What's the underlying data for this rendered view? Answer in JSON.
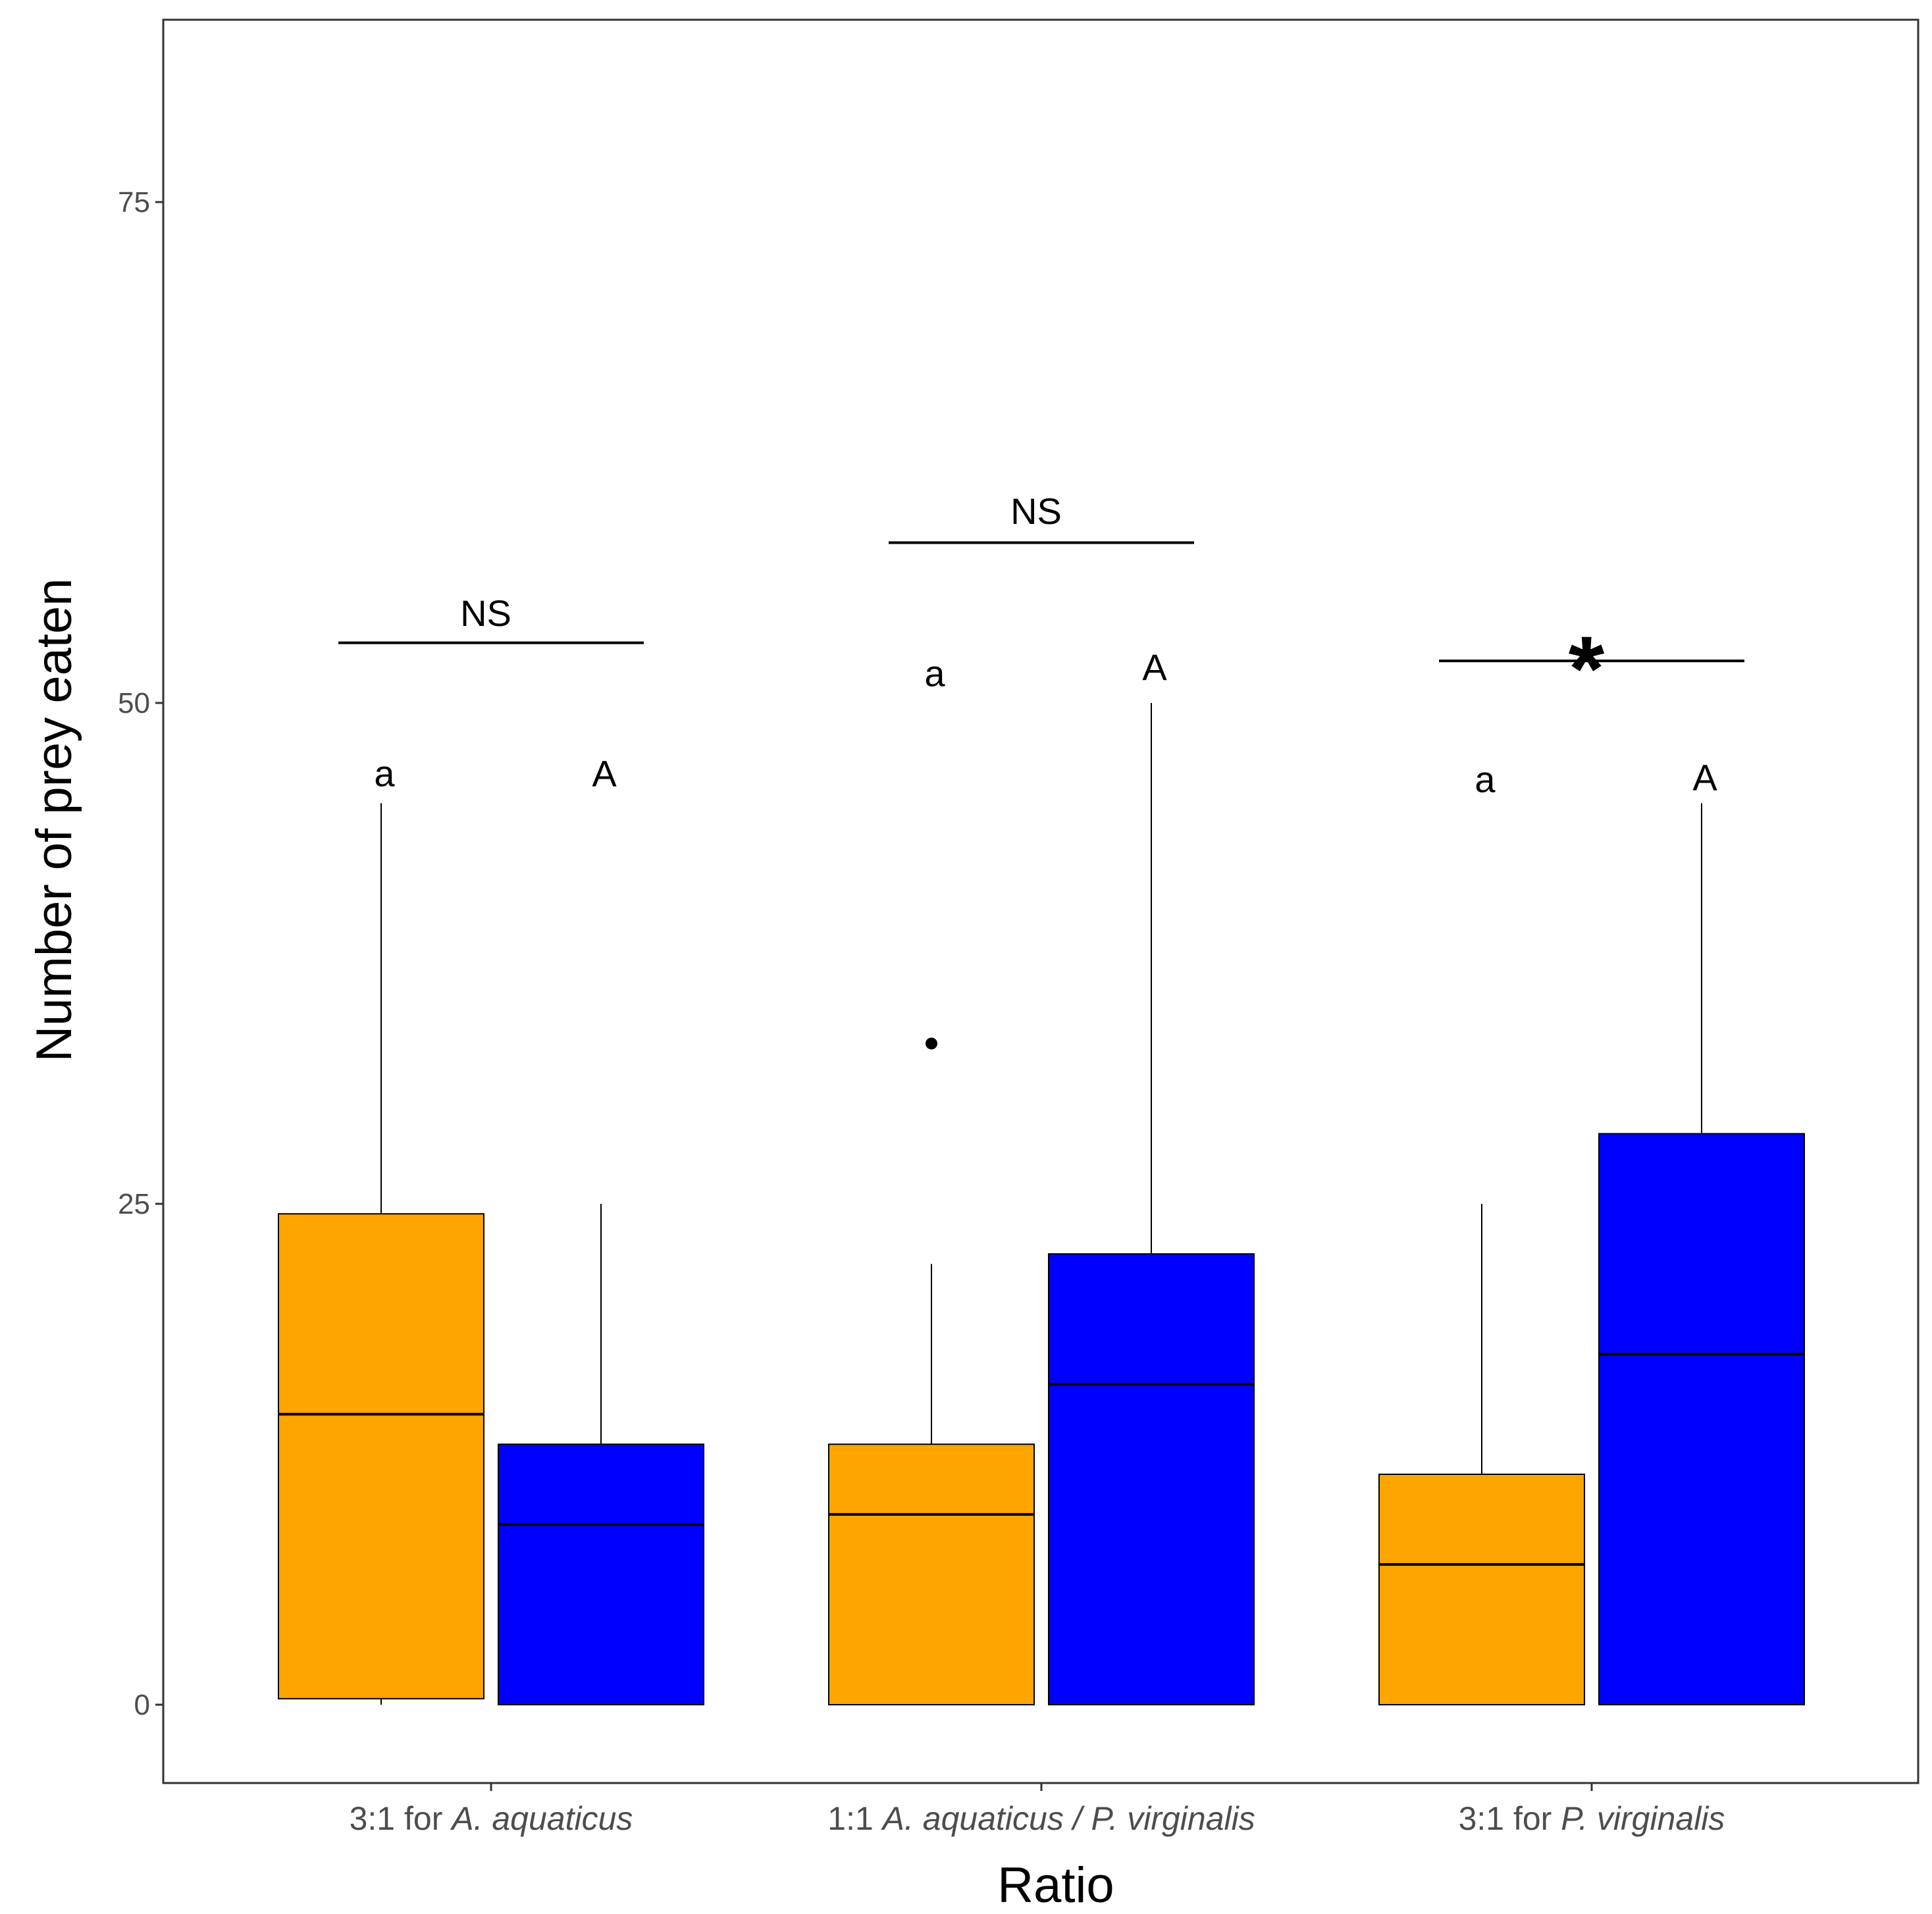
{
  "chart_data": {
    "type": "boxplot",
    "title": "",
    "xlabel": "Ratio",
    "ylabel": "Number of prey eaten",
    "ylim": [
      -4,
      84
    ],
    "yticks": [
      0,
      25,
      50,
      75
    ],
    "grid": false,
    "legend": "none",
    "categories": [
      {
        "prefix": "3:1 for ",
        "italic": "A. aquaticus"
      },
      {
        "prefix": "1:1 ",
        "italic": "A. aquaticus / P. virginalis"
      },
      {
        "prefix": "3:1 for ",
        "italic": "P. virginalis"
      }
    ],
    "series": [
      {
        "name": "series-orange",
        "color": "#FFA500",
        "boxes": [
          {
            "whisker_low": 0,
            "q1": 0.3,
            "median": 14.5,
            "q3": 24.5,
            "whisker_high": 45,
            "outliers": [],
            "letter": "a",
            "letter_y": 46.5
          },
          {
            "whisker_low": 0,
            "q1": 0,
            "median": 9.5,
            "q3": 13,
            "whisker_high": 22,
            "outliers": [
              33
            ],
            "letter": "a",
            "letter_y": 51.5
          },
          {
            "whisker_low": 0,
            "q1": 0,
            "median": 7,
            "q3": 11.5,
            "whisker_high": 25,
            "outliers": [],
            "letter": "a",
            "letter_y": 46.2
          }
        ]
      },
      {
        "name": "series-blue",
        "color": "#0000FF",
        "boxes": [
          {
            "whisker_low": 0,
            "q1": 0,
            "median": 9,
            "q3": 13,
            "whisker_high": 25,
            "outliers": [],
            "letter": "A",
            "letter_y": 46.5
          },
          {
            "whisker_low": 0,
            "q1": 0,
            "median": 16,
            "q3": 22.5,
            "whisker_high": 50,
            "outliers": [],
            "letter": "A",
            "letter_y": 51.8
          },
          {
            "whisker_low": 0,
            "q1": 0,
            "median": 17.5,
            "q3": 28.5,
            "whisker_high": 45,
            "outliers": [],
            "letter": "A",
            "letter_y": 46.3
          }
        ]
      }
    ],
    "comparisons": [
      {
        "label": "NS",
        "line_y": 53,
        "label_y": 54.5
      },
      {
        "label": "NS",
        "line_y": 58,
        "label_y": 59.6
      },
      {
        "label": "*",
        "line_y": 52.1,
        "label_y": 52.1
      }
    ]
  }
}
